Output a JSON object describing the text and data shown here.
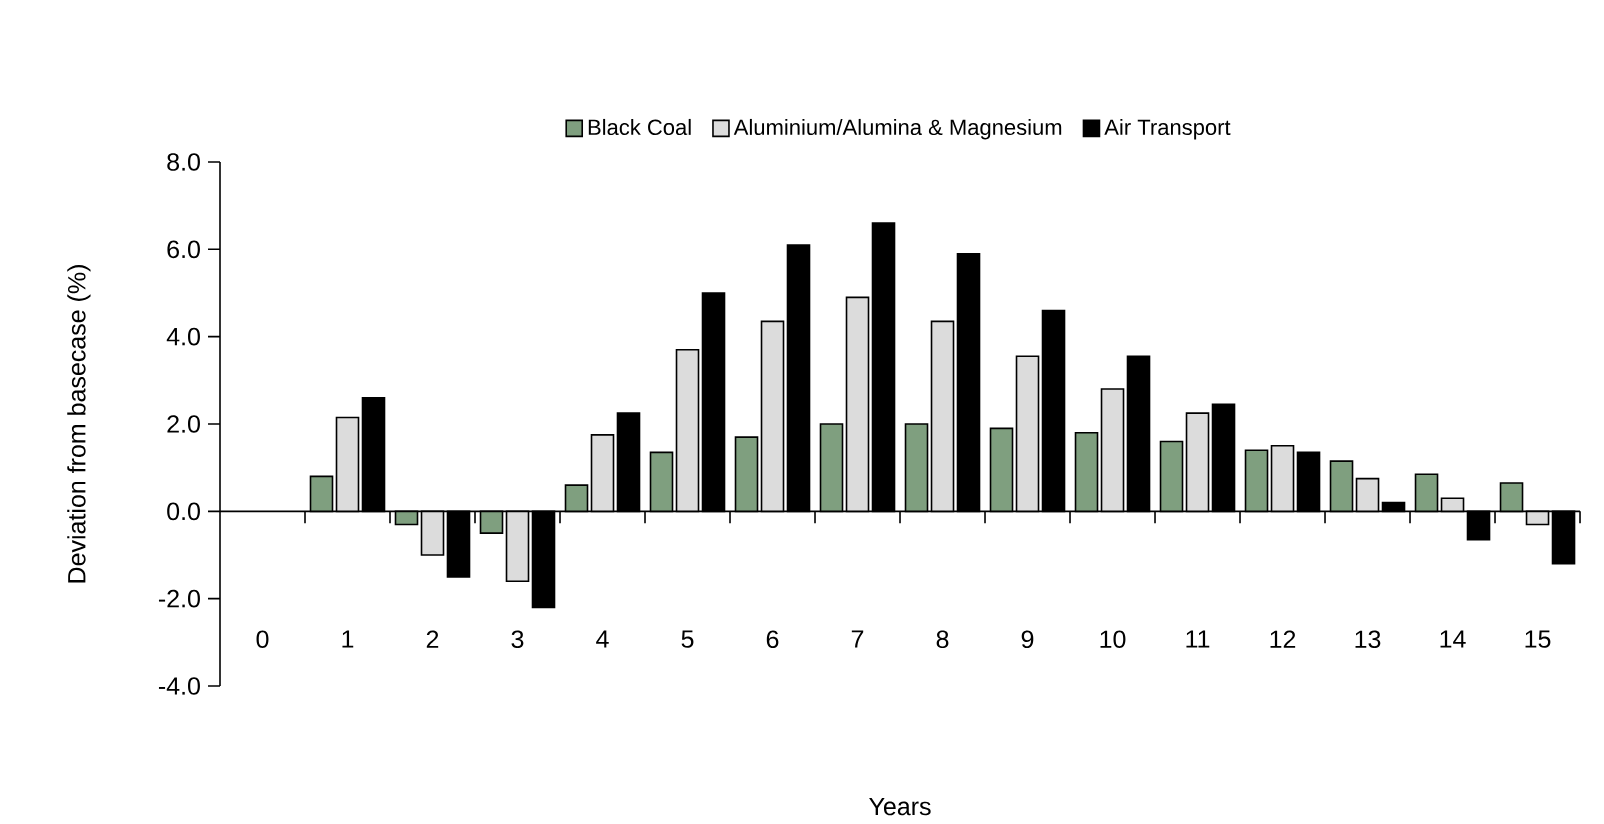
{
  "chart_data": {
    "type": "bar",
    "xlabel": "Years",
    "ylabel": "Deviation from basecase (%)",
    "categories": [
      "0",
      "1",
      "2",
      "3",
      "4",
      "5",
      "6",
      "7",
      "8",
      "9",
      "10",
      "11",
      "12",
      "13",
      "14",
      "15"
    ],
    "series": [
      {
        "name": "Black Coal",
        "color": "#7f9f7f",
        "values": [
          null,
          0.8,
          -0.3,
          -0.5,
          0.6,
          1.35,
          1.7,
          2.0,
          2.0,
          1.9,
          1.8,
          1.6,
          1.4,
          1.15,
          0.85,
          0.65
        ]
      },
      {
        "name": "Aluminium/Alumina & Magnesium",
        "color": "#dcdcdc",
        "values": [
          null,
          2.15,
          -1.0,
          -1.6,
          1.75,
          3.7,
          4.35,
          4.9,
          4.35,
          3.55,
          2.8,
          2.25,
          1.5,
          0.75,
          0.3,
          -0.3
        ]
      },
      {
        "name": "Air Transport",
        "color": "#000000",
        "values": [
          null,
          2.6,
          -1.5,
          -2.2,
          2.25,
          5.0,
          6.1,
          6.6,
          5.9,
          4.6,
          3.55,
          2.45,
          1.35,
          0.2,
          -0.65,
          -1.2
        ]
      }
    ],
    "ylim": [
      -4,
      8
    ],
    "yticks": [
      {
        "value": -4,
        "label": "-4.0"
      },
      {
        "value": -2,
        "label": "-2.0"
      },
      {
        "value": 0,
        "label": "0.0"
      },
      {
        "value": 2,
        "label": "2.0"
      },
      {
        "value": 4,
        "label": "4.0"
      },
      {
        "value": 6,
        "label": "6.0"
      },
      {
        "value": 8,
        "label": "8.0"
      }
    ],
    "legend": "top"
  }
}
